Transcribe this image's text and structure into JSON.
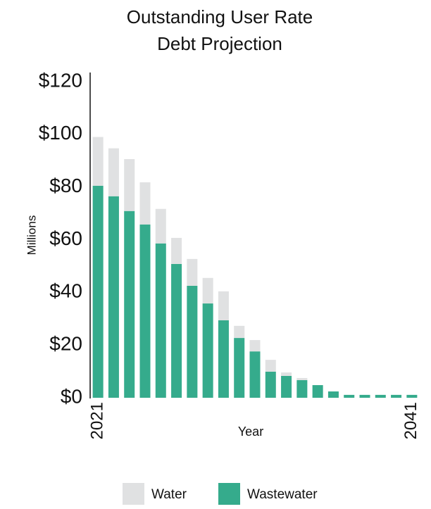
{
  "chart_data": {
    "type": "stacked_bar",
    "title": [
      "Outstanding User Rate",
      "Debt Projection"
    ],
    "y_label": "Millions",
    "x_label": "Year",
    "categories": [
      "2021",
      null,
      null,
      null,
      null,
      null,
      null,
      null,
      null,
      null,
      null,
      null,
      null,
      null,
      null,
      null,
      null,
      null,
      null,
      null,
      "2041"
    ],
    "series": [
      {
        "name": "Wastewater",
        "color": "#35ab8c",
        "values": [
          80.5,
          76.5,
          70.9,
          65.8,
          58.6,
          50.8,
          42.5,
          35.8,
          29.4,
          22.7,
          17.6,
          9.9,
          8.3,
          6.7,
          4.8,
          2.4,
          1.1,
          1.1,
          1.1,
          1.1,
          1.1
        ]
      },
      {
        "name": "Water",
        "color": "#e0e1e2",
        "values": [
          18.5,
          18.2,
          19.7,
          16,
          13.1,
          9.9,
          10.2,
          9.7,
          11,
          4.6,
          4.3,
          4.5,
          1.3,
          0.8,
          0,
          0,
          0,
          0,
          0,
          0,
          0
        ]
      }
    ],
    "ylim": [
      0,
      120
    ],
    "yticks": [
      {
        "value": 0,
        "label": "$0"
      },
      {
        "value": 20,
        "label": "$20"
      },
      {
        "value": 40,
        "label": "$40"
      },
      {
        "value": 60,
        "label": "$60"
      },
      {
        "value": 80,
        "label": "$80"
      },
      {
        "value": 100,
        "label": "$100"
      },
      {
        "value": 120,
        "label": "$120"
      }
    ],
    "legend_order": [
      1,
      0
    ]
  }
}
